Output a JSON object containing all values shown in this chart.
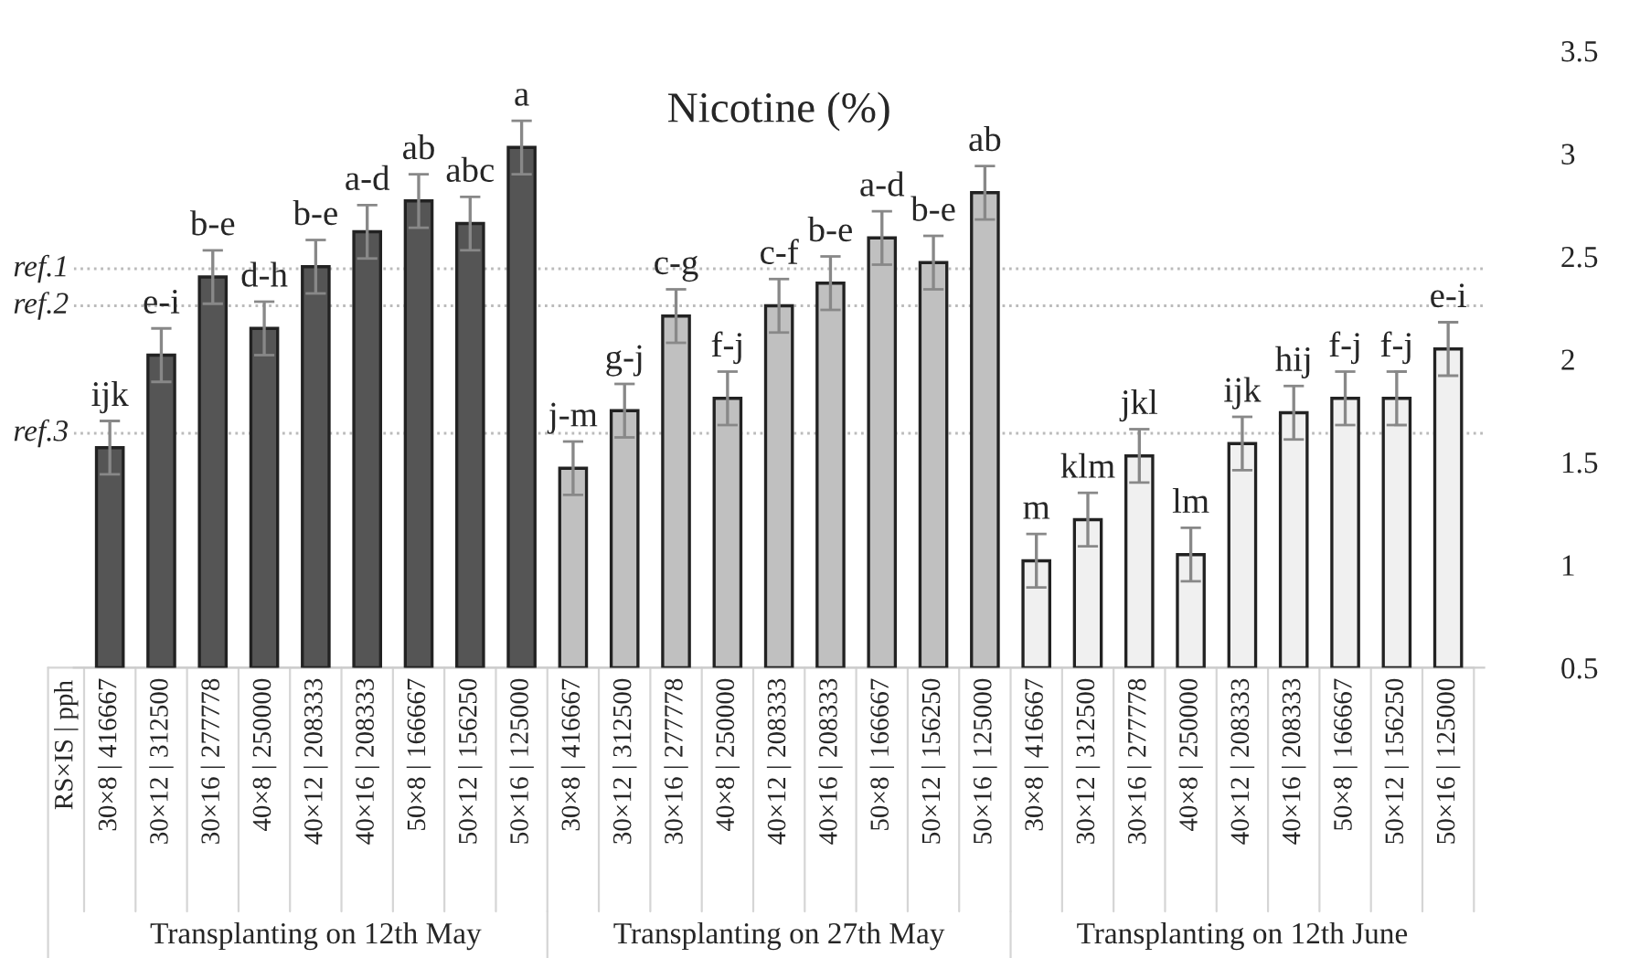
{
  "chart_data": {
    "type": "bar",
    "title": "Nicotine (%)",
    "categories": [
      "30×8 | 416667",
      "30×12 | 312500",
      "30×16 | 277778",
      "40×8 | 250000",
      "40×12 | 208333",
      "40×16 | 208333",
      "50×8 | 166667",
      "50×12 | 156250",
      "50×16 | 125000",
      "30×8 | 416667",
      "30×12 | 312500",
      "30×16 | 277778",
      "40×8 | 250000",
      "40×12 | 208333",
      "40×16 | 208333",
      "50×8 | 166667",
      "50×12 | 156250",
      "50×16 | 125000",
      "30×8 | 416667",
      "30×12 | 312500",
      "30×16 | 277778",
      "40×8 | 250000",
      "40×12 | 208333",
      "40×16 | 208333",
      "50×8 | 166667",
      "50×12 | 156250",
      "50×16 | 125000"
    ],
    "values": [
      1.57,
      2.02,
      2.4,
      2.15,
      2.45,
      2.62,
      2.77,
      2.66,
      3.03,
      1.47,
      1.75,
      2.21,
      1.81,
      2.26,
      2.37,
      2.59,
      2.47,
      2.81,
      1.02,
      1.22,
      1.53,
      1.05,
      1.59,
      1.74,
      1.81,
      1.81,
      2.05
    ],
    "errors": [
      0.13,
      0.13,
      0.13,
      0.13,
      0.13,
      0.13,
      0.13,
      0.13,
      0.13,
      0.13,
      0.13,
      0.13,
      0.13,
      0.13,
      0.13,
      0.13,
      0.13,
      0.13,
      0.13,
      0.13,
      0.13,
      0.13,
      0.13,
      0.13,
      0.13,
      0.13,
      0.13
    ],
    "value_labels": [
      "ijk",
      "e-i",
      "b-e",
      "d-h",
      "b-e",
      "a-d",
      "ab",
      "abc",
      "a",
      "j-m",
      "g-j",
      "c-g",
      "f-j",
      "c-f",
      "b-e",
      "a-d",
      "b-e",
      "ab",
      "m",
      "klm",
      "jkl",
      "lm",
      "ijk",
      "hij",
      "f-j",
      "f-j",
      "e-i"
    ],
    "colors": [
      "#555555",
      "#555555",
      "#555555",
      "#555555",
      "#555555",
      "#555555",
      "#555555",
      "#555555",
      "#555555",
      "#c0c0c0",
      "#c0c0c0",
      "#c0c0c0",
      "#c0c0c0",
      "#c0c0c0",
      "#c0c0c0",
      "#c0c0c0",
      "#c0c0c0",
      "#c0c0c0",
      "#f0f0f0",
      "#f0f0f0",
      "#f0f0f0",
      "#f0f0f0",
      "#f0f0f0",
      "#f0f0f0",
      "#f0f0f0",
      "#f0f0f0",
      "#f0f0f0"
    ],
    "ylim": [
      0.5,
      3.5
    ],
    "yticks": [
      0.5,
      1,
      1.5,
      2,
      2.5,
      3,
      3.5
    ],
    "ref_lines": [
      {
        "axis": "y",
        "value": 2.44,
        "label": "ref.1",
        "color": "#bbbbbb",
        "line_style": "dotted"
      },
      {
        "axis": "y",
        "value": 2.26,
        "label": "ref.2",
        "color": "#bbbbbb",
        "line_style": "dotted"
      },
      {
        "axis": "y",
        "value": 1.64,
        "label": "ref.3",
        "color": "#bbbbbb",
        "line_style": "dotted"
      }
    ],
    "annotations": [
      "RS×IS | pph",
      "Transplanting on 12th May",
      "Transplanting on 27th May",
      "Transplanting on 12th June"
    ],
    "grid": false,
    "legend": false
  }
}
